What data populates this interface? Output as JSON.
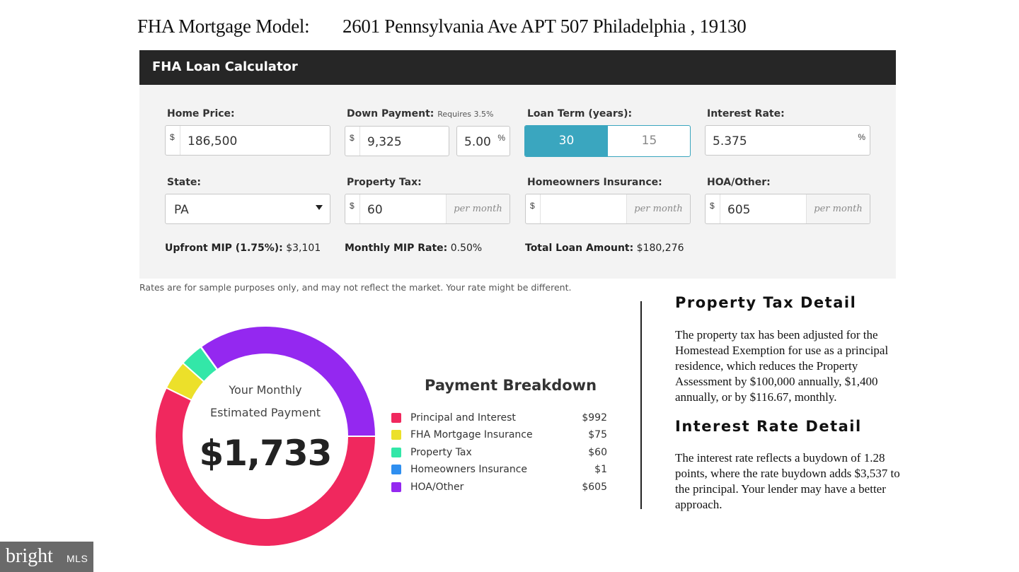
{
  "page_title": {
    "label": "FHA  Mortgage Model:",
    "address": "2601 Pennsylvania Ave   APT 507  Philadelphia , 19130"
  },
  "calculator": {
    "title": "FHA Loan Calculator",
    "home_price": {
      "label": "Home Price:",
      "currency": "$",
      "value": "186,500"
    },
    "down_payment": {
      "label": "Down Payment:",
      "note": "Requires 3.5%",
      "currency": "$",
      "value": "9,325",
      "percent": "5.00",
      "percent_symbol": "%"
    },
    "loan_term": {
      "label": "Loan Term (years):",
      "options": [
        "30",
        "15"
      ],
      "selected": "30"
    },
    "interest_rate": {
      "label": "Interest Rate:",
      "value": "5.375",
      "percent_symbol": "%"
    },
    "state": {
      "label": "State:",
      "value": "PA"
    },
    "property_tax": {
      "label": "Property Tax:",
      "currency": "$",
      "value": "60",
      "suffix": "per month"
    },
    "homeowners_insurance": {
      "label": "Homeowners Insurance:",
      "currency": "$",
      "value": "",
      "suffix": "per month"
    },
    "hoa_other": {
      "label": "HOA/Other:",
      "currency": "$",
      "value": "605",
      "suffix": "per month"
    },
    "upfront_mip": {
      "label": "Upfront MIP (1.75%):",
      "value": "$3,101"
    },
    "monthly_mip": {
      "label": "Monthly MIP Rate:",
      "value": "0.50%"
    },
    "total_loan": {
      "label": "Total Loan Amount:",
      "value": "$180,276"
    },
    "disclaimer": "Rates are for sample purposes only, and may not reflect the market. Your rate might be different."
  },
  "donut": {
    "line1": "Your Monthly",
    "line2": "Estimated Payment",
    "total": "$1,733"
  },
  "breakdown": {
    "title": "Payment Breakdown",
    "items": [
      {
        "label": "Principal and Interest",
        "amount": "$992",
        "color": "#f0285e"
      },
      {
        "label": "FHA Mortgage Insurance",
        "amount": "$75",
        "color": "#ece02a"
      },
      {
        "label": "Property Tax",
        "amount": "$60",
        "color": "#33e7a8"
      },
      {
        "label": "Homeowners Insurance",
        "amount": "$1",
        "color": "#2f8ff0"
      },
      {
        "label": "HOA/Other",
        "amount": "$605",
        "color": "#9428f0"
      }
    ]
  },
  "chart_data": {
    "type": "pie",
    "categories": [
      "Principal and Interest",
      "FHA Mortgage Insurance",
      "Property Tax",
      "Homeowners Insurance",
      "HOA/Other"
    ],
    "values": [
      992,
      75,
      60,
      1,
      605
    ],
    "colors": [
      "#f0285e",
      "#ece02a",
      "#33e7a8",
      "#2f8ff0",
      "#9428f0"
    ],
    "style": "donut"
  },
  "property_tax_detail": {
    "heading": "Property Tax Detail",
    "text": "The property tax has been adjusted for the Homestead Exemption for use as a principal residence, which reduces the Property Assessment by $100,000 annually, $1,400 annually, or by $116.67, monthly."
  },
  "interest_rate_detail": {
    "heading": "Interest Rate Detail",
    "text": "The interest rate reflects a  buydown of 1.28 points, where the rate buydown adds $3,537 to the principal. Your lender may have a better approach."
  },
  "badge": {
    "brand": "bright",
    "suffix": "MLS"
  }
}
